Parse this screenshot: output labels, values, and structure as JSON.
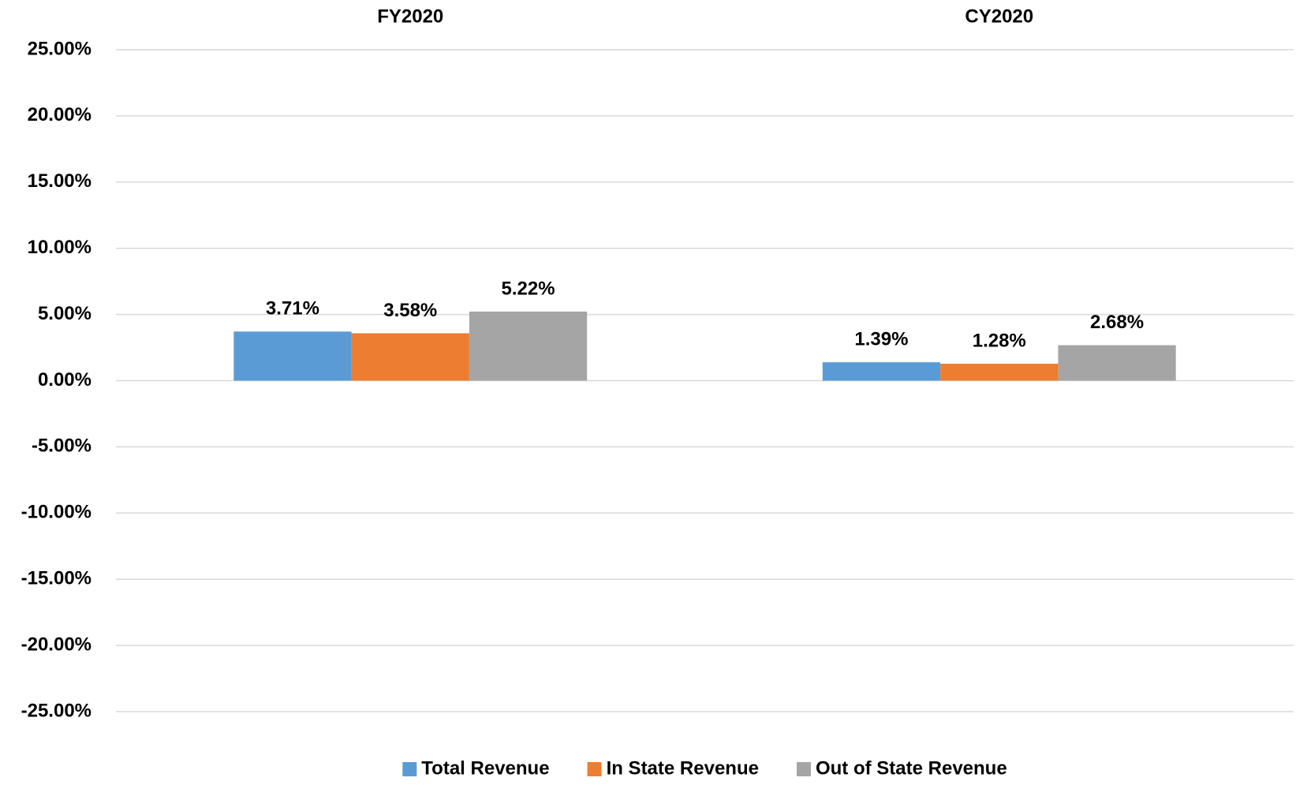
{
  "chart_data": {
    "type": "bar",
    "categories": [
      "FY2020",
      "CY2020"
    ],
    "series": [
      {
        "name": "Total Revenue",
        "color": "#5b9bd5",
        "values": [
          3.71,
          1.39
        ],
        "value_labels": [
          "3.71%",
          "1.39%"
        ]
      },
      {
        "name": "In State Revenue",
        "color": "#ed7d31",
        "values": [
          3.58,
          1.28
        ],
        "value_labels": [
          "3.58%",
          "1.28%"
        ]
      },
      {
        "name": "Out of State Revenue",
        "color": "#a5a5a5",
        "values": [
          5.22,
          2.68
        ],
        "value_labels": [
          "5.22%",
          "2.68%"
        ]
      }
    ],
    "ylim": [
      -25,
      25
    ],
    "yticks": [
      {
        "value": 25,
        "label": "25.00%"
      },
      {
        "value": 20,
        "label": "20.00%"
      },
      {
        "value": 15,
        "label": "15.00%"
      },
      {
        "value": 10,
        "label": "10.00%"
      },
      {
        "value": 5,
        "label": "5.00%"
      },
      {
        "value": 0,
        "label": "0.00%"
      },
      {
        "value": -5,
        "label": "-5.00%"
      },
      {
        "value": -10,
        "label": "-10.00%"
      },
      {
        "value": -15,
        "label": "-15.00%"
      },
      {
        "value": -20,
        "label": "-20.00%"
      },
      {
        "value": -25,
        "label": "-25.00%"
      }
    ],
    "grid": true,
    "legend": "bottom"
  }
}
